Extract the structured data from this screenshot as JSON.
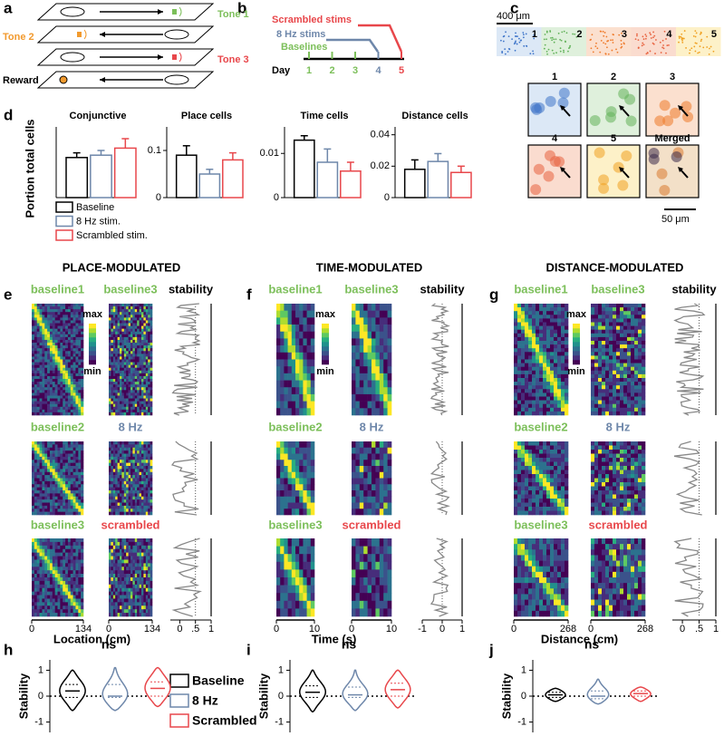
{
  "panel_labels": [
    "a",
    "b",
    "c",
    "d",
    "e",
    "f",
    "g",
    "h",
    "i",
    "j"
  ],
  "task": {
    "tones": [
      "Tone 1",
      "Tone 2",
      "Tone 3"
    ],
    "reward": "Reward"
  },
  "schedule": {
    "stims": [
      "Scrambled stims",
      "8 Hz stims",
      "Baselines"
    ],
    "axis_label": "Day",
    "days": [
      "1",
      "2",
      "3",
      "4",
      "5"
    ]
  },
  "imaging": {
    "scale_bar_large": "400 μm",
    "fields": [
      "1",
      "2",
      "3",
      "4",
      "5"
    ],
    "crops": [
      "1",
      "2",
      "3",
      "4",
      "5",
      "Merged"
    ],
    "scale_bar_small": "50 μm"
  },
  "ylabel_d": "Portion total cells",
  "legend_d": [
    {
      "name": "Baseline",
      "color": "#000000"
    },
    {
      "name": "8 Hz stim.",
      "color": "#6e87aa"
    },
    {
      "name": "Scrambled stim.",
      "color": "#e8474b"
    }
  ],
  "sections": [
    {
      "title": "PLACE-MODULATED",
      "rows": [
        [
          "baseline1",
          "baseline3"
        ],
        [
          "baseline2",
          "8 Hz"
        ],
        [
          "baseline3",
          "scrambled"
        ]
      ],
      "stability": "stability",
      "colorbar": [
        "max",
        "min"
      ],
      "xlabel": "Location (cm)",
      "xlim": [
        0,
        134
      ],
      "xticks": [
        0,
        134
      ],
      "stability_lim": [
        -0.3,
        1
      ],
      "stability_ticks": [
        0,
        {
          "value": 0.5,
          "label": ".5"
        },
        1
      ]
    },
    {
      "title": "TIME-MODULATED",
      "rows": [
        [
          "baseline1",
          "baseline3"
        ],
        [
          "baseline2",
          "8 Hz"
        ],
        [
          "baseline3",
          "scrambled"
        ]
      ],
      "stability": "stability",
      "colorbar": [
        "max",
        "min"
      ],
      "xlabel": "Time (s)",
      "xlim": [
        0,
        10
      ],
      "xticks": [
        0,
        10
      ],
      "stability_lim": [
        -1,
        1
      ],
      "stability_ticks": [
        -1,
        0,
        1
      ]
    },
    {
      "title": "DISTANCE-MODULATED",
      "rows": [
        [
          "baseline1",
          "baseline3"
        ],
        [
          "baseline2",
          "8 Hz"
        ],
        [
          "baseline3",
          "scrambled"
        ]
      ],
      "stability": "stability",
      "colorbar": [
        "max",
        "min"
      ],
      "xlabel": "Distance (cm)",
      "xlim": [
        0,
        268
      ],
      "xticks": [
        0,
        268
      ],
      "stability_lim": [
        -0.3,
        1
      ],
      "stability_ticks": [
        0,
        {
          "value": 0.5,
          "label": ".5"
        },
        1
      ]
    }
  ],
  "chart_data": [
    {
      "type": "bar",
      "title": "Conjunctive",
      "values": [
        0.017,
        0.018,
        0.021
      ],
      "errors": [
        0.002,
        0.002,
        0.004
      ],
      "ylim": [
        0,
        0.03
      ]
    },
    {
      "type": "bar",
      "title": "Place cells",
      "values": [
        0.09,
        0.05,
        0.08
      ],
      "errors": [
        0.02,
        0.01,
        0.015
      ],
      "ylim": [
        0,
        0.15
      ],
      "yticks": [
        0,
        0.1
      ]
    },
    {
      "type": "bar",
      "title": "Time cells",
      "values": [
        0.013,
        0.008,
        0.006
      ],
      "errors": [
        0.001,
        0.003,
        0.002
      ],
      "ylim": [
        0,
        0.016
      ],
      "yticks": [
        0,
        0.01
      ]
    },
    {
      "type": "bar",
      "title": "Distance cells",
      "values": [
        0.018,
        0.023,
        0.016
      ],
      "errors": [
        0.006,
        0.005,
        0.004
      ],
      "ylim": [
        0,
        0.045
      ],
      "yticks": [
        0,
        0.02,
        0.04
      ]
    },
    {
      "type": "violin",
      "annotation": "ns",
      "ylabel": "Stability",
      "ylim": [
        -1.4,
        1.4
      ],
      "yticks": [
        -1,
        0,
        1
      ],
      "series": [
        {
          "name": "Baseline",
          "color": "#000000",
          "min": -0.55,
          "q1": -0.05,
          "median": 0.2,
          "q3": 0.45,
          "max": 1.0
        },
        {
          "name": "8 Hz",
          "color": "#6e87aa",
          "min": -0.55,
          "q1": -0.05,
          "median": 0.0,
          "q3": 0.45,
          "max": 1.1
        },
        {
          "name": "Scrambled",
          "color": "#e8474b",
          "min": -0.4,
          "q1": 0.0,
          "median": 0.3,
          "q3": 0.55,
          "max": 1.1
        }
      ]
    },
    {
      "type": "violin",
      "annotation": "ns",
      "ylabel": "Stability",
      "ylim": [
        -1.4,
        1.4
      ],
      "yticks": [
        -1,
        0,
        1
      ],
      "series": [
        {
          "color": "#000000",
          "min": -0.6,
          "q1": -0.05,
          "median": 0.15,
          "q3": 0.4,
          "max": 1.0
        },
        {
          "color": "#6e87aa",
          "min": -0.55,
          "q1": -0.05,
          "median": 0.05,
          "q3": 0.35,
          "max": 1.0
        },
        {
          "color": "#e8474b",
          "min": -0.45,
          "q1": 0.0,
          "median": 0.25,
          "q3": 0.5,
          "max": 1.0
        }
      ]
    },
    {
      "type": "violin",
      "annotation": "ns",
      "ylabel": "Stability",
      "ylim": [
        -1.4,
        1.4
      ],
      "yticks": [
        -1,
        0,
        1
      ],
      "series": [
        {
          "color": "#000000",
          "min": -0.2,
          "q1": -0.05,
          "median": 0.05,
          "q3": 0.15,
          "max": 0.3
        },
        {
          "color": "#6e87aa",
          "min": -0.3,
          "q1": -0.1,
          "median": 0.0,
          "q3": 0.2,
          "max": 0.65
        },
        {
          "color": "#e8474b",
          "min": -0.2,
          "q1": 0.0,
          "median": 0.1,
          "q3": 0.2,
          "max": 0.35
        }
      ]
    }
  ]
}
